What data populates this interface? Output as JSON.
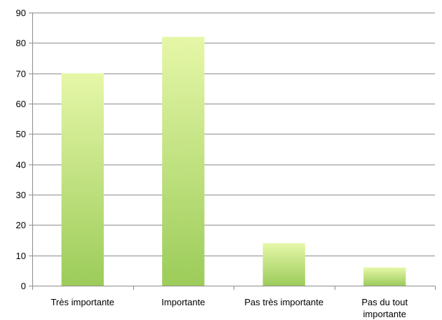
{
  "chart_data": {
    "type": "bar",
    "title": "",
    "xlabel": "",
    "ylabel": "",
    "categories": [
      "Très importante",
      "Importante",
      "Pas très importante",
      "Pas du tout importante"
    ],
    "category_label_lines": [
      [
        "Très importante"
      ],
      [
        "Importante"
      ],
      [
        "Pas très importante"
      ],
      [
        "Pas du tout",
        "importante"
      ]
    ],
    "values": [
      70,
      82,
      14,
      6
    ],
    "ylim": [
      0,
      90
    ],
    "yticks": [
      0,
      10,
      20,
      30,
      40,
      50,
      60,
      70,
      80,
      90
    ],
    "grid": true,
    "legend": "none",
    "colors": {
      "bar_top": "#e6f7a8",
      "bar_bottom": "#9ccc5a",
      "grid": "#8c8c8c",
      "text": "#000000"
    }
  }
}
